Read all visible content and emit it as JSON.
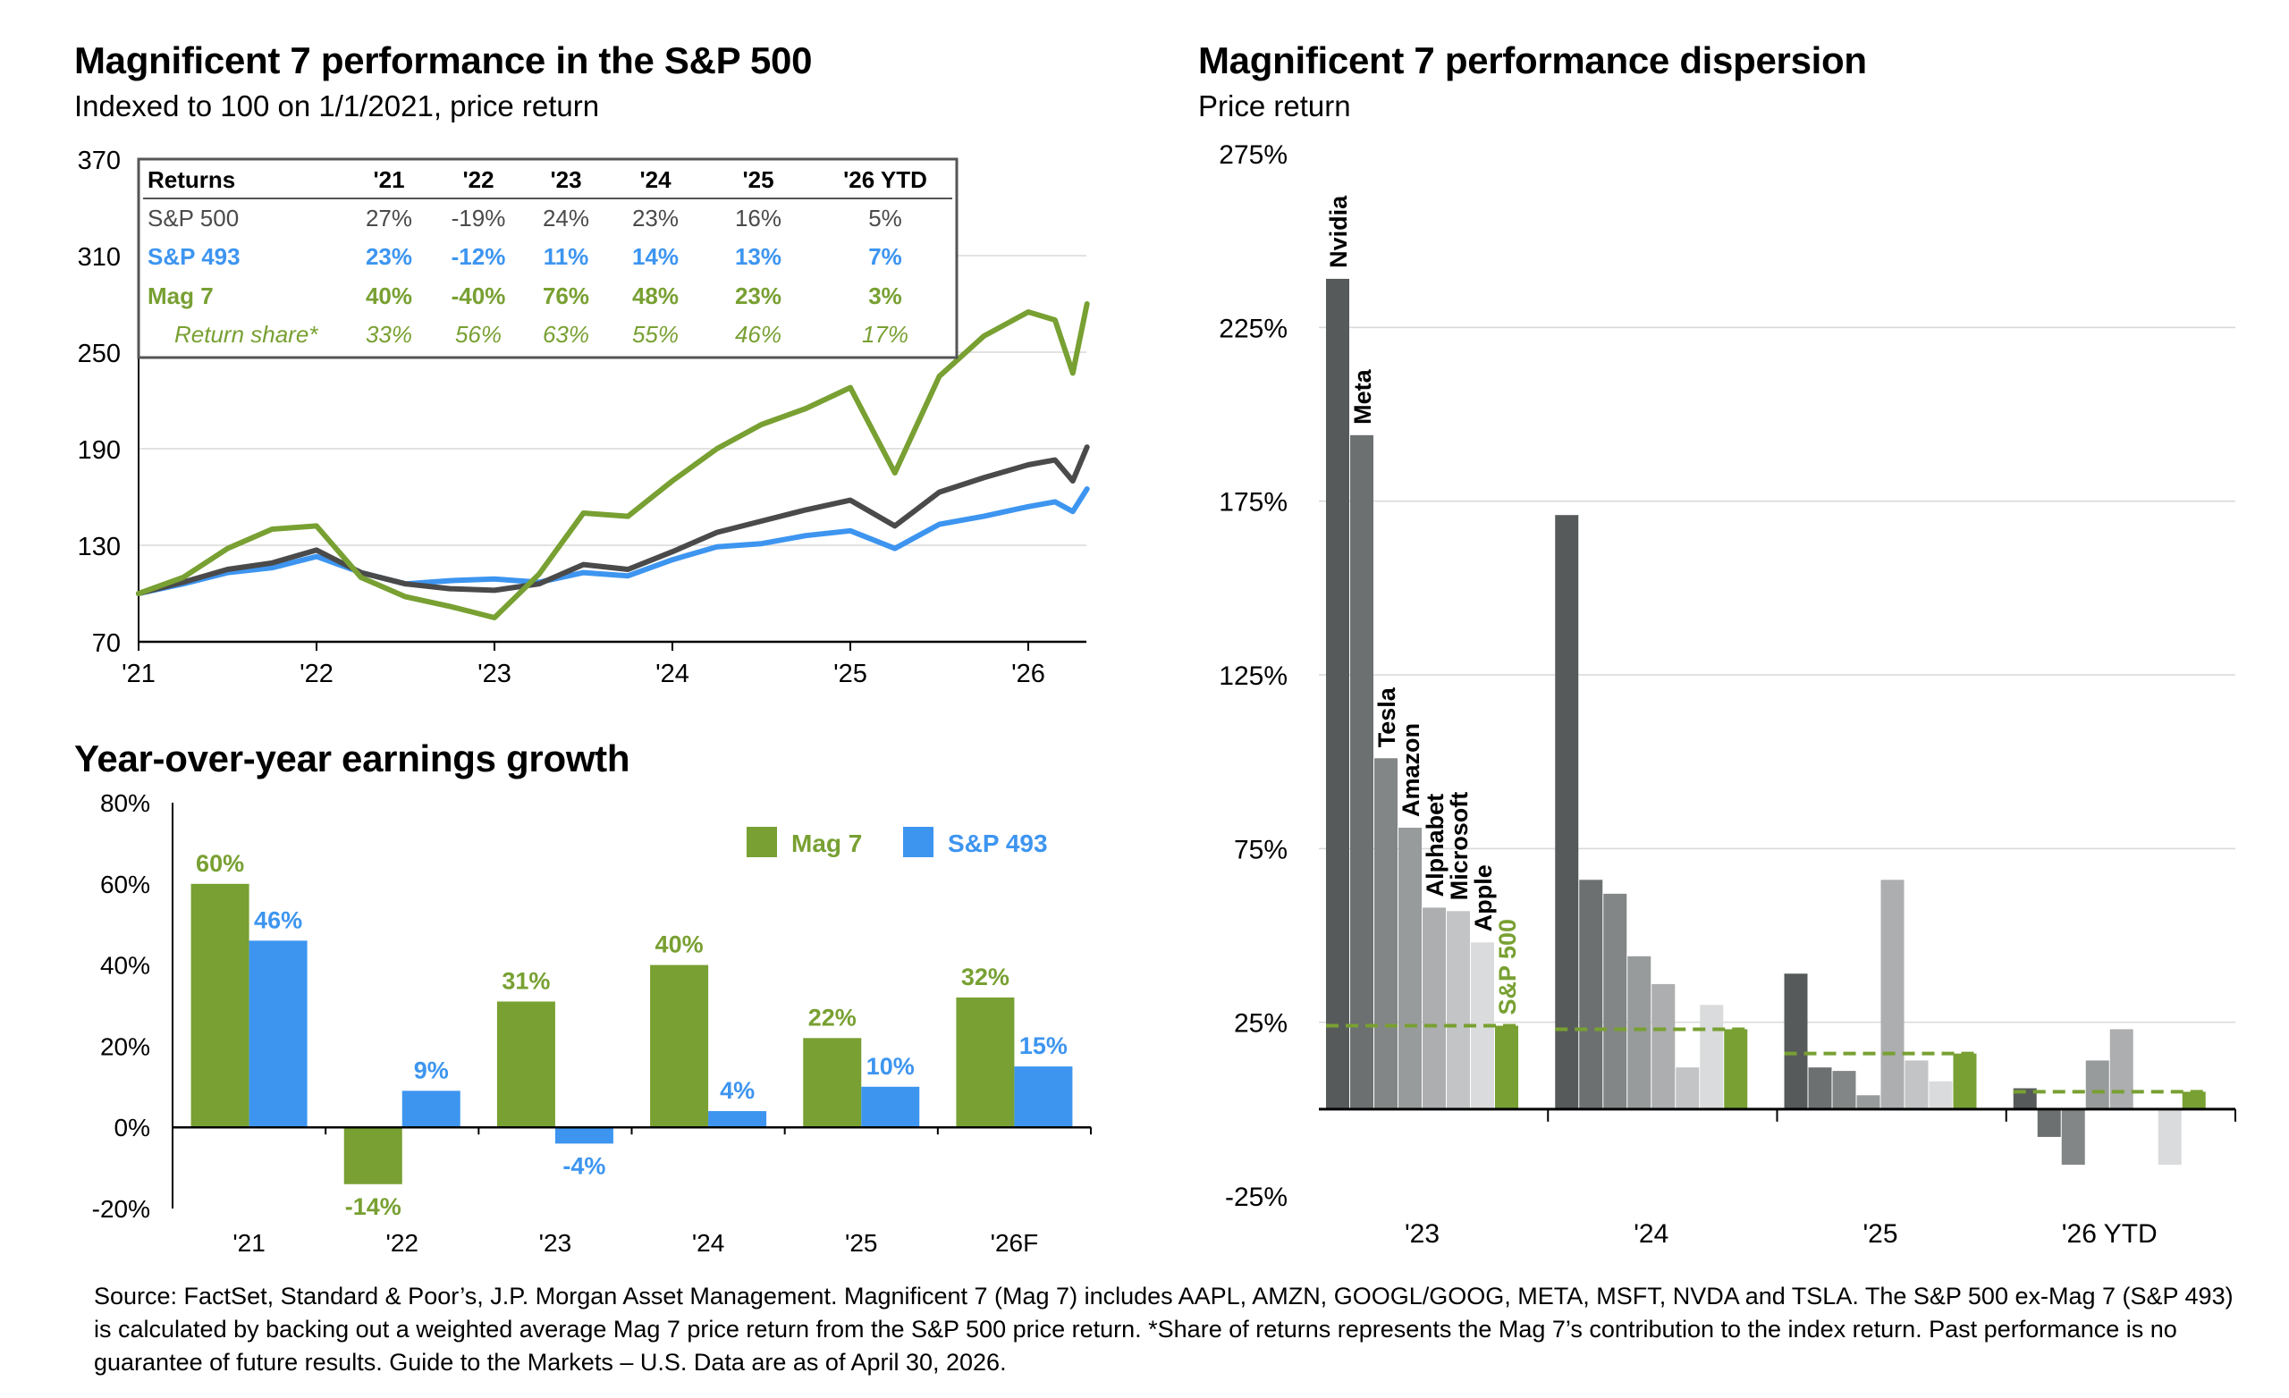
{
  "chart_data": [
    {
      "type": "line",
      "title": "Magnificent 7 performance in the S&P 500",
      "subtitle": "Indexed to 100 on 1/1/2021, price return",
      "ylim": [
        70,
        370
      ],
      "y_ticks": [
        "370",
        "310",
        "250",
        "190",
        "130",
        "70"
      ],
      "x_ticks": [
        "'21",
        "'22",
        "'23",
        "'24",
        "'25",
        "'26"
      ],
      "colors": {
        "sp500": "#4a4a4a",
        "sp493": "#3d95f0",
        "mag7": "#78a032"
      },
      "series": [
        {
          "name": "S&P 500",
          "color": "#4a4a4a",
          "x": [
            2021.0,
            2021.25,
            2021.5,
            2021.75,
            2022.0,
            2022.25,
            2022.5,
            2022.75,
            2023.0,
            2023.25,
            2023.5,
            2023.75,
            2024.0,
            2024.25,
            2024.5,
            2024.75,
            2025.0,
            2025.25,
            2025.5,
            2025.75,
            2026.0,
            2026.15,
            2026.25,
            2026.33
          ],
          "y": [
            100,
            107,
            115,
            119,
            127,
            113,
            106,
            103,
            102,
            106,
            118,
            115,
            126,
            138,
            145,
            152,
            158,
            142,
            163,
            172,
            180,
            183,
            170,
            191
          ]
        },
        {
          "name": "S&P 493",
          "color": "#3d95f0",
          "x": [
            2021.0,
            2021.25,
            2021.5,
            2021.75,
            2022.0,
            2022.25,
            2022.5,
            2022.75,
            2023.0,
            2023.25,
            2023.5,
            2023.75,
            2024.0,
            2024.25,
            2024.5,
            2024.75,
            2025.0,
            2025.25,
            2025.5,
            2025.75,
            2026.0,
            2026.15,
            2026.25,
            2026.33
          ],
          "y": [
            100,
            106,
            113,
            116,
            123,
            113,
            106,
            108,
            109,
            107,
            113,
            111,
            121,
            129,
            131,
            136,
            139,
            128,
            143,
            148,
            154,
            157,
            151,
            165
          ]
        },
        {
          "name": "Mag 7",
          "color": "#78a032",
          "x": [
            2021.0,
            2021.25,
            2021.5,
            2021.75,
            2022.0,
            2022.25,
            2022.5,
            2022.75,
            2023.0,
            2023.25,
            2023.5,
            2023.75,
            2024.0,
            2024.25,
            2024.5,
            2024.75,
            2025.0,
            2025.25,
            2025.5,
            2025.75,
            2026.0,
            2026.15,
            2026.25,
            2026.33
          ],
          "y": [
            100,
            110,
            128,
            140,
            142,
            110,
            98,
            92,
            85,
            112,
            150,
            148,
            170,
            190,
            205,
            215,
            228,
            175,
            235,
            260,
            275,
            270,
            237,
            280
          ]
        }
      ]
    },
    {
      "type": "bar",
      "title": "Year-over-year earnings growth",
      "categories": [
        "'21",
        "'22",
        "'23",
        "'24",
        "'25",
        "'26F"
      ],
      "ylim": [
        -20,
        80
      ],
      "y_ticks": [
        "80%",
        "60%",
        "40%",
        "20%",
        "0%",
        "-20%"
      ],
      "legend_position": "top-right",
      "series": [
        {
          "name": "Mag 7",
          "color": "#78a032",
          "values": [
            60,
            -14,
            31,
            40,
            22,
            32
          ],
          "labels": [
            "60%",
            "-14%",
            "31%",
            "40%",
            "22%",
            "32%"
          ]
        },
        {
          "name": "S&P 493",
          "color": "#3d95f0",
          "values": [
            46,
            9,
            -4,
            4,
            10,
            15
          ],
          "labels": [
            "46%",
            "9%",
            "-4%",
            "4%",
            "10%",
            "15%"
          ]
        }
      ]
    },
    {
      "type": "bar",
      "title": "Magnificent 7 performance dispersion",
      "subtitle": "Price return",
      "ylim": [
        -25,
        275
      ],
      "y_ticks": [
        "275%",
        "225%",
        "175%",
        "125%",
        "75%",
        "25%",
        "-25%"
      ],
      "categories": [
        "'23",
        "'24",
        "'25",
        "'26 YTD"
      ],
      "members": [
        "Nvidia",
        "Meta",
        "Tesla",
        "Amazon",
        "Alphabet",
        "Microsoft",
        "Apple",
        "S&P 500"
      ],
      "member_colors": [
        "#575a5b",
        "#6d7071",
        "#838687",
        "#989b9c",
        "#acaeaf",
        "#c2c4c5",
        "#dadbdc",
        "#78a032"
      ],
      "values": {
        "'23": [
          239,
          194,
          101,
          81,
          58,
          57,
          48,
          24
        ],
        "'24": [
          171,
          66,
          62,
          44,
          36,
          12,
          30,
          23
        ],
        "'25": [
          39,
          12,
          11,
          4,
          66,
          14,
          8,
          16
        ],
        "'26 YTD": [
          6,
          -8,
          -16,
          14,
          23,
          0,
          -16,
          5
        ]
      }
    }
  ],
  "table": {
    "headers": [
      "Returns",
      "'21",
      "'22",
      "'23",
      "'24",
      "'25",
      "'26 YTD"
    ],
    "rows": [
      {
        "label": "S&P 500",
        "color": "#4a4a4a",
        "values": [
          "27%",
          "-19%",
          "24%",
          "23%",
          "16%",
          "5%"
        ]
      },
      {
        "label": "S&P 493",
        "color": "#3d95f0",
        "values": [
          "23%",
          "-12%",
          "11%",
          "14%",
          "13%",
          "7%"
        ]
      },
      {
        "label": "Mag 7",
        "color": "#78a032",
        "values": [
          "40%",
          "-40%",
          "76%",
          "48%",
          "23%",
          "3%"
        ]
      },
      {
        "label": "Return share*",
        "color": "#78a032",
        "values": [
          "33%",
          "56%",
          "63%",
          "55%",
          "46%",
          "17%"
        ]
      }
    ]
  },
  "footer": {
    "source": "Source: FactSet, Standard & Poor’s, J.P. Morgan Asset Management. Magnificent 7 (Mag 7) includes AAPL, AMZN, GOOGL/GOOG, META, MSFT, NVDA and TSLA. The S&P 500 ex-Mag 7 (S&P 493) is calculated by backing out a weighted average Mag 7 price return from the S&P 500 price return. *Share of returns represents the Mag 7’s contribution to the index return. Past performance is no guarantee of future results. Guide to the Markets – U.S. Data are as of April 30, 2026."
  }
}
